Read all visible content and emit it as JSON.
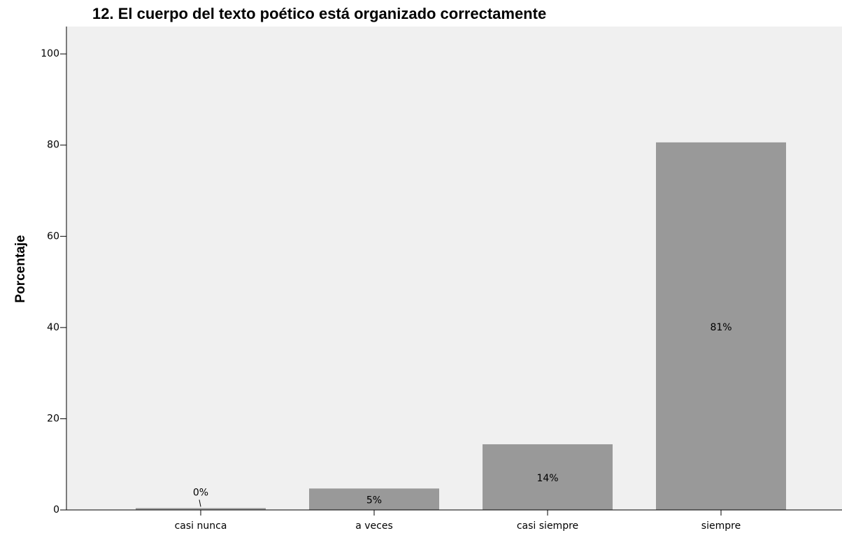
{
  "chart_data": {
    "type": "bar",
    "title": "12. El cuerpo del texto poético está organizado correctamente",
    "y_label": "Porcentaje",
    "categories": [
      "casi nunca",
      "a veces",
      "casi siempre",
      "siempre"
    ],
    "values": [
      0.4,
      4.7,
      14.4,
      80.6
    ],
    "value_labels": [
      "0%",
      "5%",
      "14%",
      "81%"
    ],
    "color": "#999999",
    "ylim": [
      0,
      106
    ],
    "yticks": [
      0,
      20,
      40,
      60,
      80,
      100
    ],
    "grid": false
  }
}
